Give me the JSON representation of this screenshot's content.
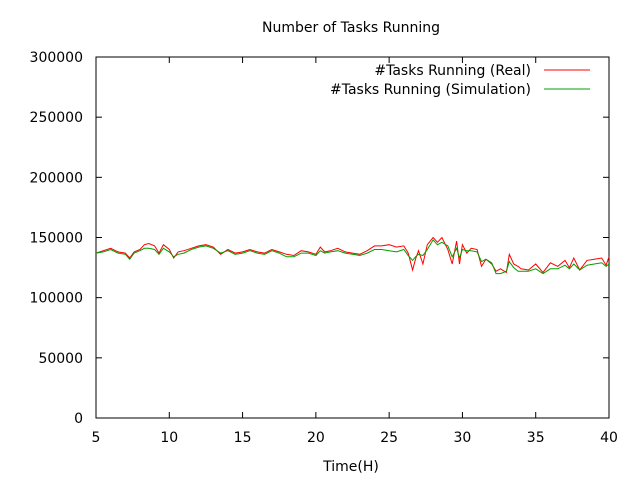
{
  "chart_data": {
    "type": "line",
    "title": "Number of Tasks Running",
    "xlabel": "Time(H)",
    "ylabel": "",
    "xlim": [
      5,
      40
    ],
    "ylim": [
      0,
      300000
    ],
    "xticks": [
      5,
      10,
      15,
      20,
      25,
      30,
      35,
      40
    ],
    "yticks": [
      0,
      50000,
      100000,
      150000,
      200000,
      250000,
      300000
    ],
    "grid": false,
    "legend_position": "top-right",
    "series": [
      {
        "name": "#Tasks Running (Real)",
        "color": "#ff0000",
        "x": [
          5,
          5.5,
          6,
          6.5,
          7,
          7.3,
          7.6,
          8,
          8.3,
          8.6,
          9,
          9.3,
          9.6,
          10,
          10.3,
          10.6,
          11,
          11.5,
          12,
          12.5,
          13,
          13.5,
          14,
          14.5,
          15,
          15.5,
          16,
          16.5,
          17,
          17.5,
          18,
          18.5,
          19,
          19.5,
          20,
          20.3,
          20.6,
          21,
          21.5,
          22,
          22.5,
          23,
          23.5,
          24,
          24.5,
          25,
          25.5,
          26,
          26.3,
          26.6,
          26.8,
          27,
          27.3,
          27.6,
          28,
          28.3,
          28.6,
          29,
          29.3,
          29.6,
          29.8,
          30,
          30.3,
          30.6,
          31,
          31.3,
          31.6,
          32,
          32.3,
          32.6,
          33,
          33.2,
          33.5,
          33.8,
          34,
          34.5,
          35,
          35.5,
          36,
          36.5,
          37,
          37.3,
          37.6,
          38,
          38.5,
          39,
          39.5,
          39.8,
          40
        ],
        "values": [
          137000,
          139000,
          141000,
          138000,
          137000,
          133000,
          138000,
          140000,
          144000,
          145000,
          143000,
          137000,
          144000,
          140000,
          133000,
          138000,
          139000,
          141000,
          143000,
          144000,
          142000,
          136000,
          140000,
          137000,
          138000,
          140000,
          138000,
          137000,
          140000,
          138000,
          136000,
          135000,
          139000,
          138000,
          136000,
          142000,
          138000,
          139000,
          141000,
          138000,
          137000,
          136000,
          139000,
          143000,
          143000,
          144000,
          142000,
          143000,
          137000,
          123000,
          132000,
          139000,
          128000,
          144000,
          150000,
          146000,
          150000,
          140000,
          128000,
          147000,
          128000,
          144000,
          137000,
          141000,
          140000,
          126000,
          132000,
          128000,
          122000,
          124000,
          121000,
          136000,
          128000,
          126000,
          124000,
          123000,
          128000,
          121000,
          129000,
          126000,
          131000,
          125000,
          133000,
          123000,
          131000,
          132000,
          133000,
          127000,
          134000
        ]
      },
      {
        "name": "#Tasks Running (Simulation)",
        "color": "#00a000",
        "x": [
          5,
          5.5,
          6,
          6.5,
          7,
          7.3,
          7.6,
          8,
          8.3,
          8.6,
          9,
          9.3,
          9.6,
          10,
          10.3,
          10.6,
          11,
          11.5,
          12,
          12.5,
          13,
          13.5,
          14,
          14.5,
          15,
          15.5,
          16,
          16.5,
          17,
          17.5,
          18,
          18.5,
          19,
          19.5,
          20,
          20.3,
          20.6,
          21,
          21.5,
          22,
          22.5,
          23,
          23.5,
          24,
          24.5,
          25,
          25.5,
          26,
          26.3,
          26.6,
          26.8,
          27,
          27.3,
          27.6,
          28,
          28.3,
          28.6,
          29,
          29.3,
          29.6,
          29.8,
          30,
          30.3,
          30.6,
          31,
          31.3,
          31.6,
          32,
          32.3,
          32.6,
          33,
          33.2,
          33.5,
          33.8,
          34,
          34.5,
          35,
          35.5,
          36,
          36.5,
          37,
          37.3,
          37.6,
          38,
          38.5,
          39,
          39.5,
          39.8,
          40
        ],
        "values": [
          137000,
          138000,
          140000,
          137000,
          136000,
          132000,
          137000,
          139000,
          141000,
          141000,
          140000,
          136000,
          141000,
          138000,
          134000,
          136000,
          137000,
          140000,
          142000,
          143000,
          141000,
          137000,
          139000,
          136000,
          137000,
          139000,
          137000,
          136000,
          139000,
          137000,
          134000,
          134000,
          137000,
          137000,
          135000,
          139000,
          137000,
          138000,
          139000,
          137000,
          136000,
          135000,
          137000,
          140000,
          140000,
          139000,
          138000,
          140000,
          135000,
          131000,
          134000,
          136000,
          135000,
          140000,
          148000,
          144000,
          146000,
          143000,
          134000,
          141000,
          133000,
          140000,
          139000,
          139000,
          138000,
          130000,
          132000,
          129000,
          120000,
          120000,
          122000,
          130000,
          125000,
          122000,
          122000,
          122000,
          124000,
          120000,
          124000,
          124000,
          127000,
          124000,
          128000,
          123000,
          127000,
          128000,
          129000,
          126000,
          128000
        ]
      }
    ]
  }
}
